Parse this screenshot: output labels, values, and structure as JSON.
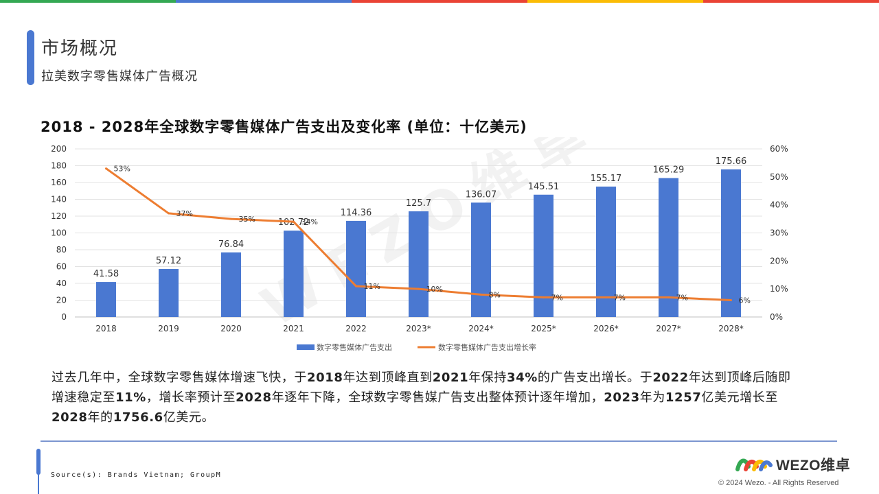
{
  "topbar_colors": [
    "#34a853",
    "#4a78d1",
    "#ea4335",
    "#fbbc05",
    "#ea4335"
  ],
  "header": {
    "title": "市场概况",
    "subtitle": "拉美数字零售媒体广告概况"
  },
  "chart_heading": "2018 - 2028年全球数字零售媒体广告支出及变化率 (单位：十亿美元)",
  "chart_data": {
    "type": "bar",
    "categories": [
      "2018",
      "2019",
      "2020",
      "2021",
      "2022",
      "2023*",
      "2024*",
      "2025*",
      "2026*",
      "2027*",
      "2028*"
    ],
    "series": [
      {
        "name": "数字零售媒体广告支出",
        "type": "bar",
        "axis": "left",
        "color": "#4a78d1",
        "values": [
          41.58,
          57.12,
          76.84,
          102.72,
          114.36,
          125.7,
          136.07,
          145.51,
          155.17,
          165.29,
          175.66
        ],
        "labels": [
          "41.58",
          "57.12",
          "76.84",
          "102.72",
          "114.36",
          "125.7",
          "136.07",
          "145.51",
          "155.17",
          "165.29",
          "175.66"
        ]
      },
      {
        "name": "数字零售媒体广告支出增长率",
        "type": "line",
        "axis": "right",
        "color": "#ed7d31",
        "values": [
          53,
          37,
          35,
          34,
          11,
          10,
          8,
          7,
          7,
          7,
          6
        ],
        "labels": [
          "53%",
          "37%",
          "35%",
          "34%",
          "11%",
          "10%",
          "8%",
          "7%",
          "7%",
          "7%",
          "6%"
        ]
      }
    ],
    "y_left": {
      "min": 0,
      "max": 200,
      "ticks": [
        "0",
        "20",
        "40",
        "60",
        "80",
        "100",
        "120",
        "140",
        "160",
        "180",
        "200"
      ]
    },
    "y_right": {
      "min": 0,
      "max": 60,
      "ticks": [
        "0%",
        "10%",
        "20%",
        "30%",
        "40%",
        "50%",
        "60%"
      ]
    },
    "grid": true,
    "legend_position": "bottom",
    "watermark": "WEZO维卓"
  },
  "summary": {
    "p1": "过去几年中，全球数字零售媒体增速飞快，于",
    "b1": "2018",
    "p2": "年达到顶峰直到",
    "b2": "2021",
    "p3": "年保持",
    "b3": "34%",
    "p4": "的广告支出增长。于",
    "b4": "2022",
    "p5": "年达到顶峰后随即增速稳定至",
    "b5": "11%",
    "p6": "，增长率预计至",
    "b6": "2028",
    "p7": "年逐年下降，全球数字零售媒广告支出整体预计逐年增加，",
    "b7": "2023",
    "p8": "年为",
    "b8": "1257",
    "p9": "亿美元增长至",
    "b9": "2028",
    "p10": "年的",
    "b10": "1756.6",
    "p11": "亿美元。"
  },
  "footer": {
    "source": "Source(s): Brands Vietnam; GroupM",
    "logo_text": "WEZO维卓",
    "copyright": "© 2024 Wezo. - All Rights Reserved"
  }
}
